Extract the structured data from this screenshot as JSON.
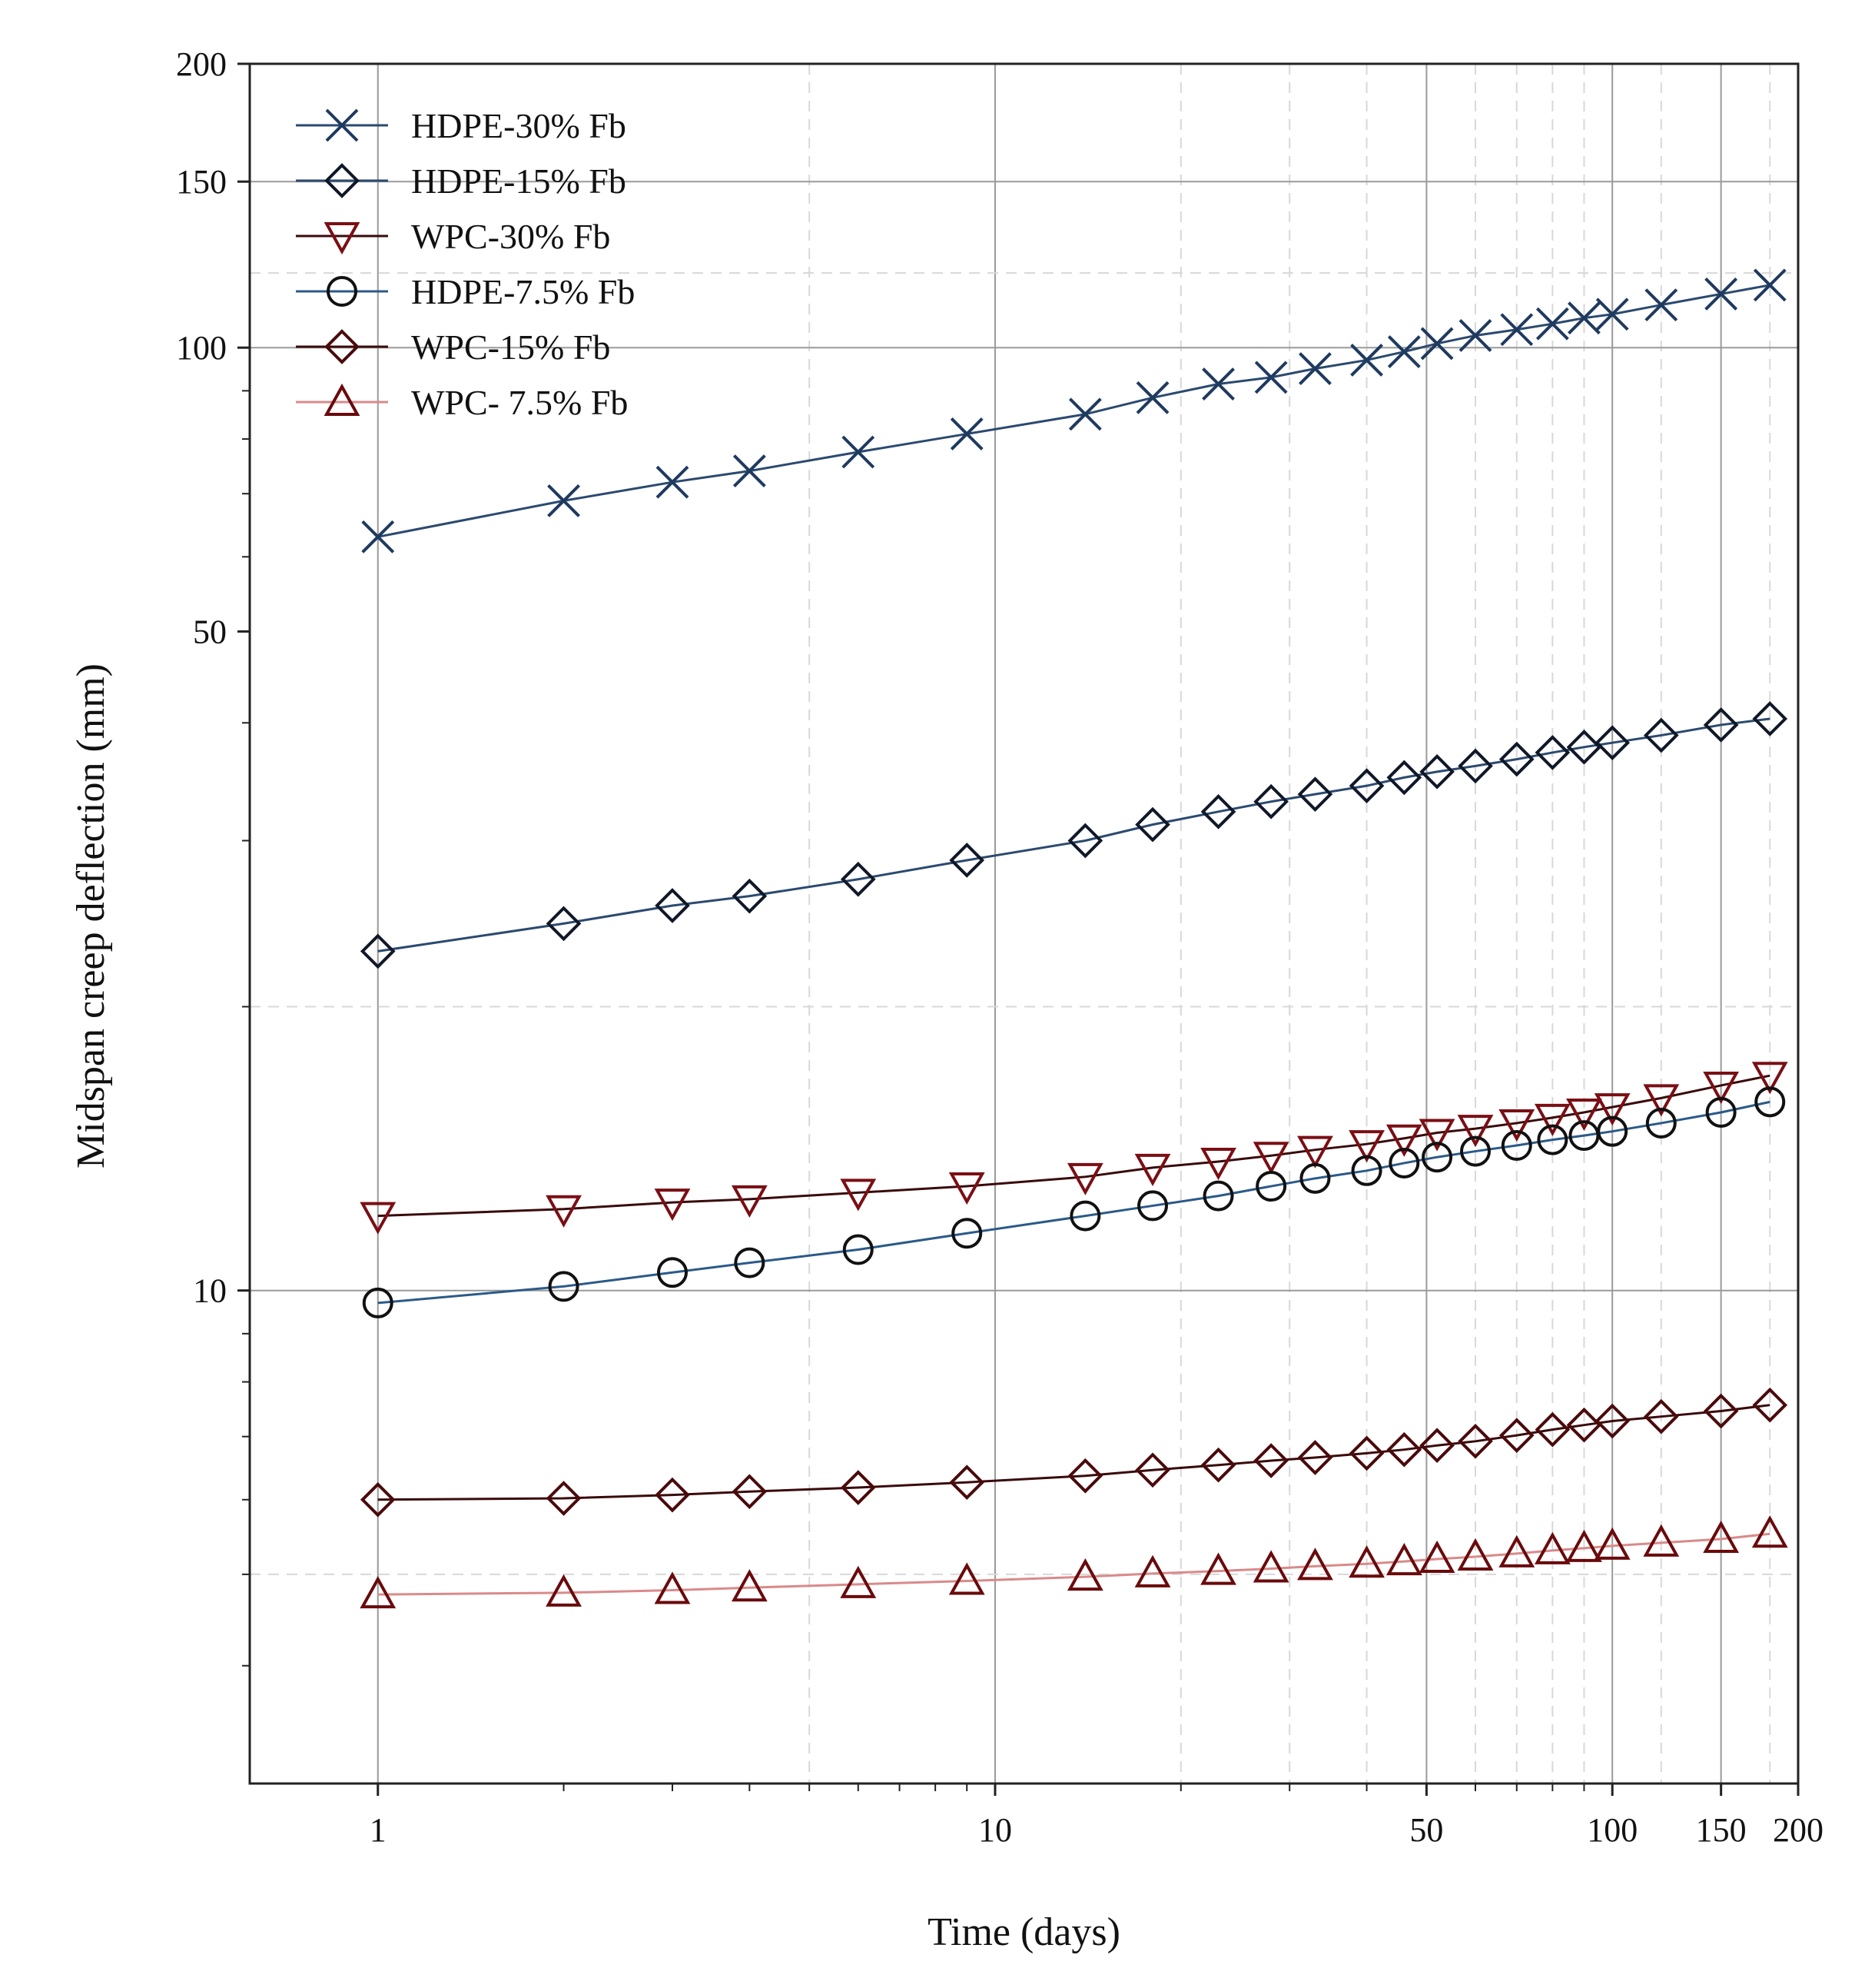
{
  "chart_data": {
    "type": "line",
    "title": "",
    "xlabel": "Time (days)",
    "ylabel": "Midspan creep deflection (mm)",
    "x_scale": "log",
    "y_scale": "log",
    "xlim": [
      0.62,
      200
    ],
    "ylim": [
      3,
      200
    ],
    "x_ticks": [
      1,
      10,
      50,
      100,
      150,
      200
    ],
    "x_tick_labels": [
      "1",
      "10",
      "50",
      "100",
      "150",
      "200"
    ],
    "y_ticks": [
      10,
      50,
      100,
      150,
      200
    ],
    "y_tick_labels": [
      "10",
      "50",
      "100",
      "150",
      "200"
    ],
    "grid": true,
    "legend_position": "top-left",
    "series": [
      {
        "name": "HDPE-30% Fb",
        "marker": "x",
        "color": "#1f3a5f",
        "line_color": "#2b4a6f",
        "x": [
          1,
          2,
          3,
          4,
          6,
          9,
          14,
          18,
          23,
          28,
          33,
          40,
          46,
          52,
          60,
          70,
          80,
          90,
          100,
          120,
          150,
          180
        ],
        "y": [
          63,
          68.8,
          72,
          74,
          77.5,
          81,
          85,
          88.5,
          91.5,
          93,
          95,
          97,
          99,
          101,
          103,
          104.5,
          106,
          107.5,
          108.5,
          111,
          114,
          116.5
        ]
      },
      {
        "name": "HDPE-15% Fb",
        "marker": "diamond",
        "color": "#101828",
        "line_color": "#2b4a6f",
        "x": [
          1,
          2,
          3,
          4,
          6,
          9,
          14,
          18,
          23,
          28,
          33,
          40,
          46,
          52,
          60,
          70,
          80,
          90,
          100,
          120,
          150,
          180
        ],
        "y": [
          22.9,
          24.5,
          25.6,
          26.2,
          27.3,
          28.6,
          30,
          31.2,
          32.2,
          33,
          33.6,
          34.3,
          35,
          35.5,
          36,
          36.6,
          37.2,
          37.7,
          38.1,
          38.8,
          39.8,
          40.4
        ]
      },
      {
        "name": "WPC-30% Fb",
        "marker": "triangle-down",
        "color": "#7a0f14",
        "line_color": "#3a0a0c",
        "x": [
          1,
          2,
          3,
          4,
          6,
          9,
          14,
          18,
          23,
          28,
          33,
          40,
          46,
          52,
          60,
          70,
          80,
          90,
          100,
          120,
          150,
          180
        ],
        "y": [
          12,
          12.2,
          12.4,
          12.5,
          12.7,
          12.9,
          13.2,
          13.5,
          13.7,
          13.9,
          14.1,
          14.3,
          14.5,
          14.7,
          14.85,
          15.05,
          15.25,
          15.45,
          15.65,
          16,
          16.5,
          16.9
        ]
      },
      {
        "name": "HDPE-7.5% Fb",
        "marker": "circle",
        "color": "#111111",
        "line_color": "#2b5a88",
        "x": [
          1,
          2,
          3,
          4,
          6,
          9,
          14,
          18,
          23,
          28,
          33,
          40,
          46,
          52,
          60,
          70,
          80,
          90,
          100,
          120,
          150,
          180
        ],
        "y": [
          9.7,
          10.1,
          10.45,
          10.7,
          11.05,
          11.5,
          12,
          12.3,
          12.6,
          12.9,
          13.15,
          13.4,
          13.65,
          13.85,
          14.05,
          14.25,
          14.45,
          14.6,
          14.75,
          15.05,
          15.45,
          15.85
        ]
      },
      {
        "name": "WPC-15% Fb",
        "marker": "diamond",
        "color": "#4a0a0c",
        "line_color": "#3a0a0c",
        "x": [
          1,
          2,
          3,
          4,
          6,
          9,
          14,
          18,
          23,
          28,
          33,
          40,
          46,
          52,
          60,
          70,
          80,
          90,
          100,
          120,
          150,
          180
        ],
        "y": [
          6,
          6.02,
          6.07,
          6.12,
          6.18,
          6.26,
          6.36,
          6.45,
          6.53,
          6.6,
          6.65,
          6.72,
          6.78,
          6.85,
          6.92,
          7.02,
          7.12,
          7.2,
          7.27,
          7.35,
          7.45,
          7.56
        ]
      },
      {
        "name": "WPC- 7.5% Fb",
        "marker": "triangle-up",
        "color": "#6a0a0c",
        "line_color": "#d98a8a",
        "x": [
          1,
          2,
          3,
          4,
          6,
          9,
          14,
          18,
          23,
          28,
          33,
          40,
          46,
          52,
          60,
          70,
          80,
          90,
          100,
          120,
          150,
          180
        ],
        "y": [
          4.76,
          4.78,
          4.81,
          4.84,
          4.88,
          4.92,
          4.97,
          5.01,
          5.04,
          5.07,
          5.1,
          5.13,
          5.16,
          5.19,
          5.22,
          5.26,
          5.3,
          5.33,
          5.36,
          5.4,
          5.45,
          5.52
        ]
      }
    ]
  }
}
